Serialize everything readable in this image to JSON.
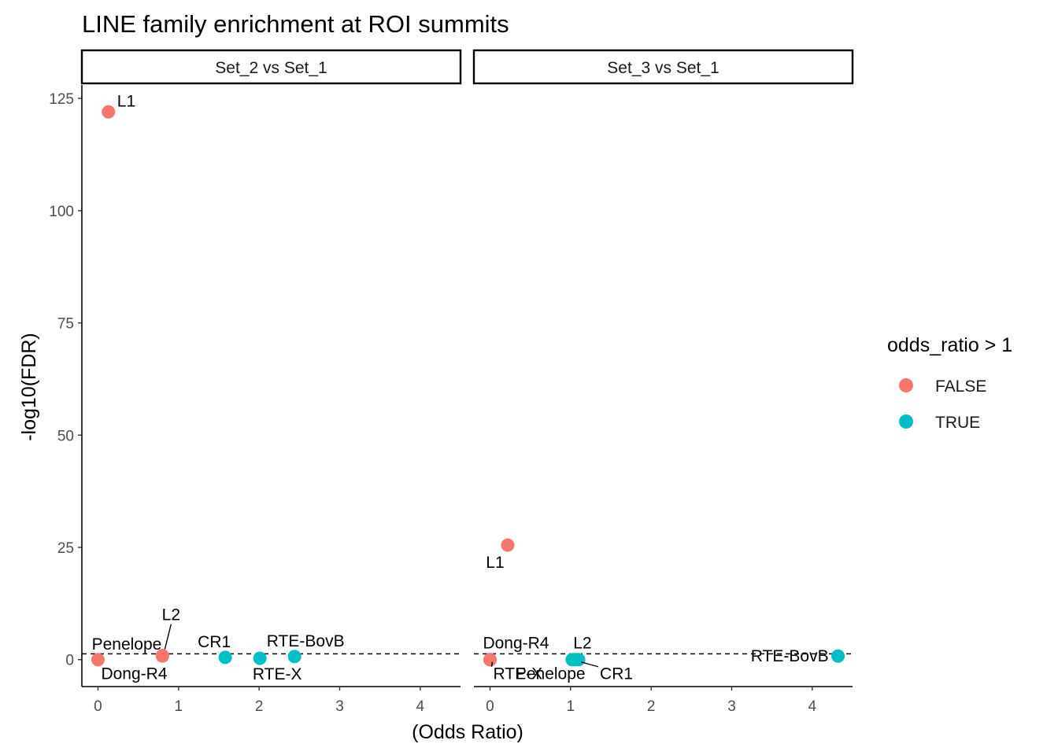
{
  "chart_data": {
    "type": "scatter",
    "title": "LINE family enrichment at ROI summits",
    "xlabel": "(Odds Ratio)",
    "ylabel": "-log10(FDR)",
    "xlim": [
      -0.2,
      4.5
    ],
    "ylim": [
      -6,
      128
    ],
    "x_ticks": [
      0,
      1,
      2,
      3,
      4
    ],
    "y_ticks": [
      0,
      25,
      50,
      75,
      100,
      125
    ],
    "threshold_line": {
      "y": 1.3,
      "style": "dashed"
    },
    "grid": false,
    "legend": {
      "title": "odds_ratio > 1",
      "position": "right",
      "entries": [
        {
          "label": "FALSE",
          "color": "#F8766D"
        },
        {
          "label": "TRUE",
          "color": "#00BFC4"
        }
      ]
    },
    "panels": [
      {
        "label": "Set_2 vs Set_1",
        "points": [
          {
            "name": "L1",
            "x": 0.13,
            "y": 122.0,
            "group": "FALSE"
          },
          {
            "name": "Dong-R4",
            "x": 0.0,
            "y": 0.0,
            "group": "FALSE"
          },
          {
            "name": "Penelope",
            "x": 0.8,
            "y": 0.8,
            "group": "FALSE"
          },
          {
            "name": "L2",
            "x": 0.8,
            "y": 0.9,
            "group": "FALSE"
          },
          {
            "name": "CR1",
            "x": 1.58,
            "y": 0.5,
            "group": "TRUE"
          },
          {
            "name": "RTE-X",
            "x": 2.01,
            "y": 0.3,
            "group": "TRUE"
          },
          {
            "name": "RTE-BovB",
            "x": 2.44,
            "y": 0.7,
            "group": "TRUE"
          }
        ]
      },
      {
        "label": "Set_3 vs Set_1",
        "points": [
          {
            "name": "L1",
            "x": 0.22,
            "y": 25.5,
            "group": "FALSE"
          },
          {
            "name": "Dong-R4",
            "x": 0.0,
            "y": 0.0,
            "group": "FALSE"
          },
          {
            "name": "RTE-X",
            "x": 0.0,
            "y": 0.0,
            "group": "FALSE"
          },
          {
            "name": "Penelope",
            "x": 1.02,
            "y": 0.0,
            "group": "TRUE"
          },
          {
            "name": "L2",
            "x": 1.05,
            "y": 0.0,
            "group": "TRUE"
          },
          {
            "name": "CR1",
            "x": 1.1,
            "y": 0.0,
            "group": "TRUE"
          },
          {
            "name": "RTE-BovB",
            "x": 4.32,
            "y": 0.8,
            "group": "TRUE"
          }
        ]
      }
    ]
  }
}
